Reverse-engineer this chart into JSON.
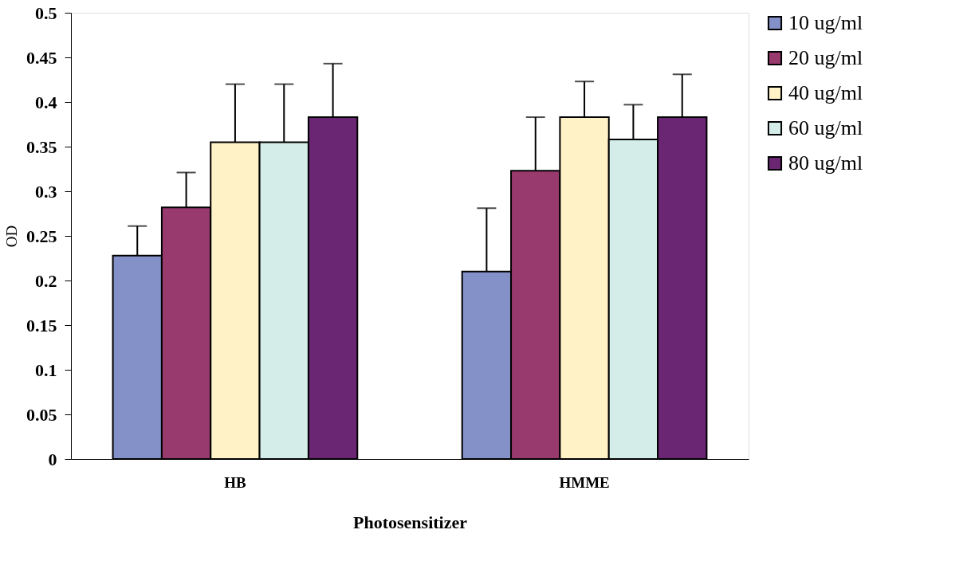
{
  "chart_data": {
    "type": "bar",
    "xlabel": "Photosensitizer",
    "ylabel": "OD",
    "categories": [
      "HB",
      "HMME"
    ],
    "series": [
      {
        "name": "10 ug/ml",
        "color": "#8491c8",
        "values": [
          0.228,
          0.21
        ],
        "errors": [
          [
            0.228,
            0.261
          ],
          [
            0.21,
            0.281
          ]
        ]
      },
      {
        "name": "20 ug/ml",
        "color": "#993a6e",
        "values": [
          0.282,
          0.323
        ],
        "errors": [
          [
            0.282,
            0.321
          ],
          [
            0.323,
            0.383
          ]
        ]
      },
      {
        "name": "40 ug/ml",
        "color": "#fff2c6",
        "values": [
          0.355,
          0.383
        ],
        "errors": [
          [
            0.355,
            0.42
          ],
          [
            0.383,
            0.423
          ]
        ]
      },
      {
        "name": "60 ug/ml",
        "color": "#d4ede9",
        "values": [
          0.355,
          0.358
        ],
        "errors": [
          [
            0.355,
            0.42
          ],
          [
            0.358,
            0.397
          ]
        ]
      },
      {
        "name": "80 ug/ml",
        "color": "#6a2673",
        "values": [
          0.383,
          0.383
        ],
        "errors": [
          [
            0.383,
            0.443
          ],
          [
            0.383,
            0.431
          ]
        ]
      }
    ],
    "ylim": [
      0,
      0.5
    ],
    "yticks": [
      0,
      0.05,
      0.1,
      0.15,
      0.2,
      0.25,
      0.3,
      0.35,
      0.4,
      0.45,
      0.5
    ],
    "grid": false,
    "legend": "right"
  }
}
